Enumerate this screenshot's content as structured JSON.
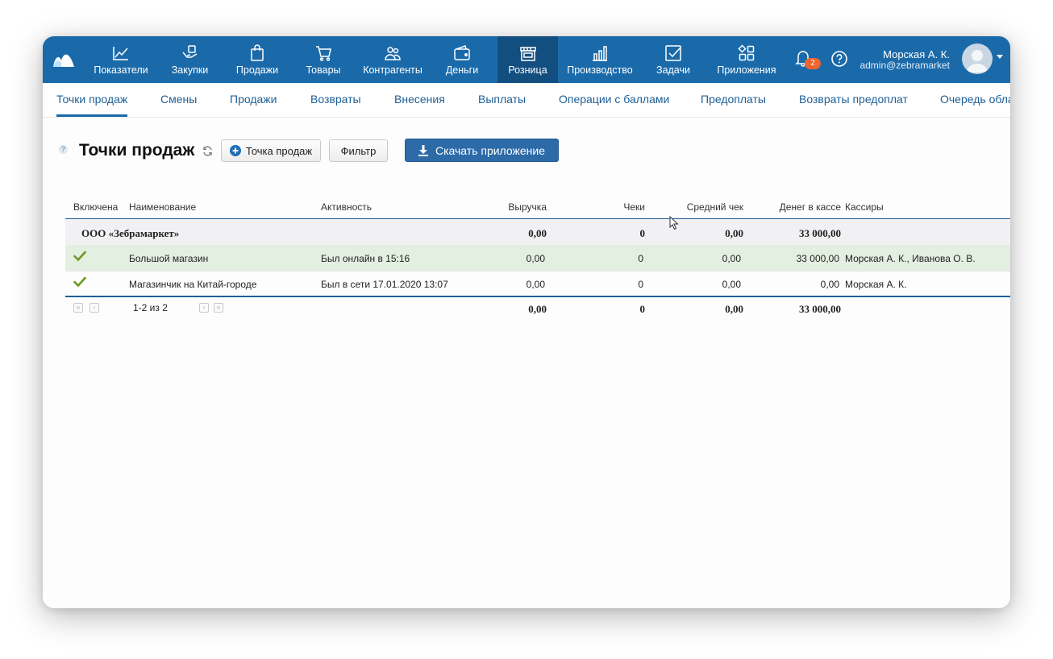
{
  "topnav": {
    "items": [
      {
        "label": "Показатели",
        "icon": "chart-line-icon"
      },
      {
        "label": "Закупки",
        "icon": "hand-box-icon"
      },
      {
        "label": "Продажи",
        "icon": "shopping-bag-icon"
      },
      {
        "label": "Товары",
        "icon": "cart-icon"
      },
      {
        "label": "Контрагенты",
        "icon": "people-icon"
      },
      {
        "label": "Деньги",
        "icon": "wallet-icon"
      },
      {
        "label": "Розница",
        "icon": "storefront-icon"
      },
      {
        "label": "Производство",
        "icon": "factory-icon"
      },
      {
        "label": "Задачи",
        "icon": "checkbox-icon"
      },
      {
        "label": "Приложения",
        "icon": "apps-grid-icon"
      }
    ],
    "active": "Розница",
    "notifications_count": "2",
    "user": {
      "name": "Морская А. К.",
      "email": "admin@zebramarket"
    }
  },
  "subnav": {
    "items": [
      "Точки продаж",
      "Смены",
      "Продажи",
      "Возвраты",
      "Внесения",
      "Выплаты",
      "Операции с баллами",
      "Предоплаты",
      "Возвраты предоплат",
      "Очередь обла"
    ],
    "active": "Точки продаж"
  },
  "page": {
    "title": "Точки продаж",
    "help": "?",
    "add_button": "Точка продаж",
    "filter_button": "Фильтр",
    "download_button": "Скачать приложение"
  },
  "table": {
    "columns": [
      "Включена",
      "Наименование",
      "Активность",
      "Выручка",
      "Чеки",
      "Средний чек",
      "Денег в кассе",
      "Кассиры"
    ],
    "group": {
      "name": "ООО «Зебрамаркет»",
      "revenue": "0,00",
      "checks": "0",
      "avg": "0,00",
      "cash": "33 000,00"
    },
    "rows": [
      {
        "enabled": true,
        "name": "Большой магазин",
        "activity": "Был онлайн в 15:16",
        "revenue": "0,00",
        "checks": "0",
        "avg": "0,00",
        "cash": "33 000,00",
        "cashiers": "Морская А. К., Иванова О. В."
      },
      {
        "enabled": true,
        "name": "Магазинчик на Китай-городе",
        "activity": "Был в сети 17.01.2020 13:07",
        "revenue": "0,00",
        "checks": "0",
        "avg": "0,00",
        "cash": "0,00",
        "cashiers": "Морская А. К."
      }
    ],
    "footer": {
      "pagination": "1-2 из 2",
      "revenue": "0,00",
      "checks": "0",
      "avg": "0,00",
      "cash": "33 000,00"
    }
  },
  "colors": {
    "nav_bg": "#1a6aaa",
    "nav_active": "#124e7f",
    "link": "#1f5f96",
    "badge": "#f0652d",
    "selected_row": "#e3efe1",
    "check": "#6a9a1f"
  }
}
